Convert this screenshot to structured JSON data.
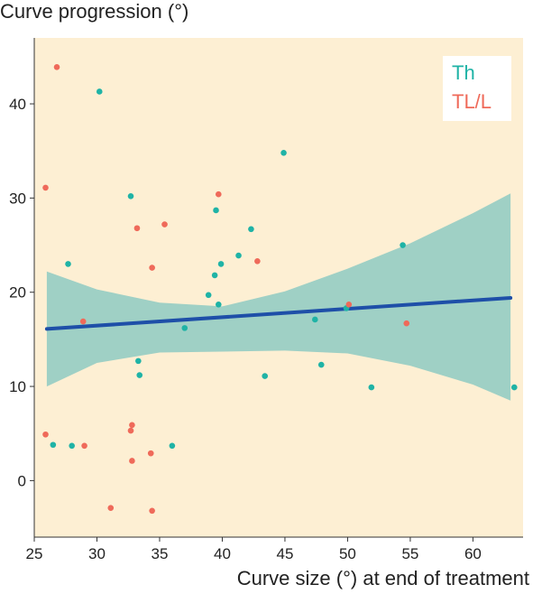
{
  "colors": {
    "panel_bg": "#fdefd3",
    "th_points": "#1fb3a6",
    "tl_points": "#ef6a5a",
    "fit_line": "#1e4fa8",
    "ci_band": "#9fd0c5"
  },
  "chart_data": {
    "type": "scatter",
    "title": "",
    "ylabel": "Curve progression (°)",
    "xlabel": "Curve size (°) at end of treatment",
    "xlim": [
      25,
      64
    ],
    "ylim": [
      -6,
      47
    ],
    "xticks": [
      25,
      30,
      35,
      40,
      45,
      50,
      55,
      60
    ],
    "yticks": [
      0,
      10,
      20,
      30,
      40
    ],
    "grid": false,
    "legend_position": "top-right",
    "series": [
      {
        "name": "Th",
        "color": "#1fb3a6",
        "points": [
          [
            26.5,
            3.8
          ],
          [
            27.7,
            23.0
          ],
          [
            28.0,
            3.7
          ],
          [
            30.2,
            41.3
          ],
          [
            32.7,
            30.2
          ],
          [
            33.3,
            12.7
          ],
          [
            33.4,
            11.2
          ],
          [
            36.0,
            3.7
          ],
          [
            37.0,
            16.2
          ],
          [
            38.9,
            19.7
          ],
          [
            39.4,
            21.8
          ],
          [
            39.5,
            28.7
          ],
          [
            39.7,
            18.7
          ],
          [
            39.9,
            23.0
          ],
          [
            41.3,
            23.9
          ],
          [
            42.3,
            26.7
          ],
          [
            44.9,
            34.8
          ],
          [
            43.4,
            11.1
          ],
          [
            47.4,
            17.1
          ],
          [
            47.9,
            12.3
          ],
          [
            49.9,
            18.3
          ],
          [
            51.9,
            9.9
          ],
          [
            54.4,
            25.0
          ],
          [
            63.3,
            9.9
          ]
        ]
      },
      {
        "name": "TL/L",
        "color": "#ef6a5a",
        "points": [
          [
            25.9,
            31.1
          ],
          [
            25.9,
            4.9
          ],
          [
            26.8,
            43.9
          ],
          [
            28.9,
            16.9
          ],
          [
            29.0,
            3.7
          ],
          [
            31.1,
            -2.9
          ],
          [
            32.7,
            5.3
          ],
          [
            32.8,
            5.9
          ],
          [
            32.8,
            2.1
          ],
          [
            33.2,
            26.8
          ],
          [
            34.3,
            2.9
          ],
          [
            34.4,
            22.6
          ],
          [
            34.4,
            -3.2
          ],
          [
            35.4,
            27.2
          ],
          [
            39.7,
            30.4
          ],
          [
            42.8,
            23.3
          ],
          [
            50.1,
            18.7
          ],
          [
            54.7,
            16.7
          ]
        ]
      }
    ],
    "fit": {
      "x": [
        26.0,
        63.0
      ],
      "y": [
        16.1,
        19.4
      ]
    },
    "confidence_band": {
      "x": [
        26.0,
        30.0,
        35.0,
        40.0,
        45.0,
        50.0,
        55.0,
        60.0,
        63.0
      ],
      "upper": [
        22.2,
        20.3,
        18.9,
        18.5,
        20.1,
        22.5,
        25.2,
        28.4,
        30.5
      ],
      "lower": [
        10.0,
        12.5,
        13.6,
        13.7,
        13.8,
        13.5,
        12.2,
        10.2,
        8.5
      ]
    }
  }
}
